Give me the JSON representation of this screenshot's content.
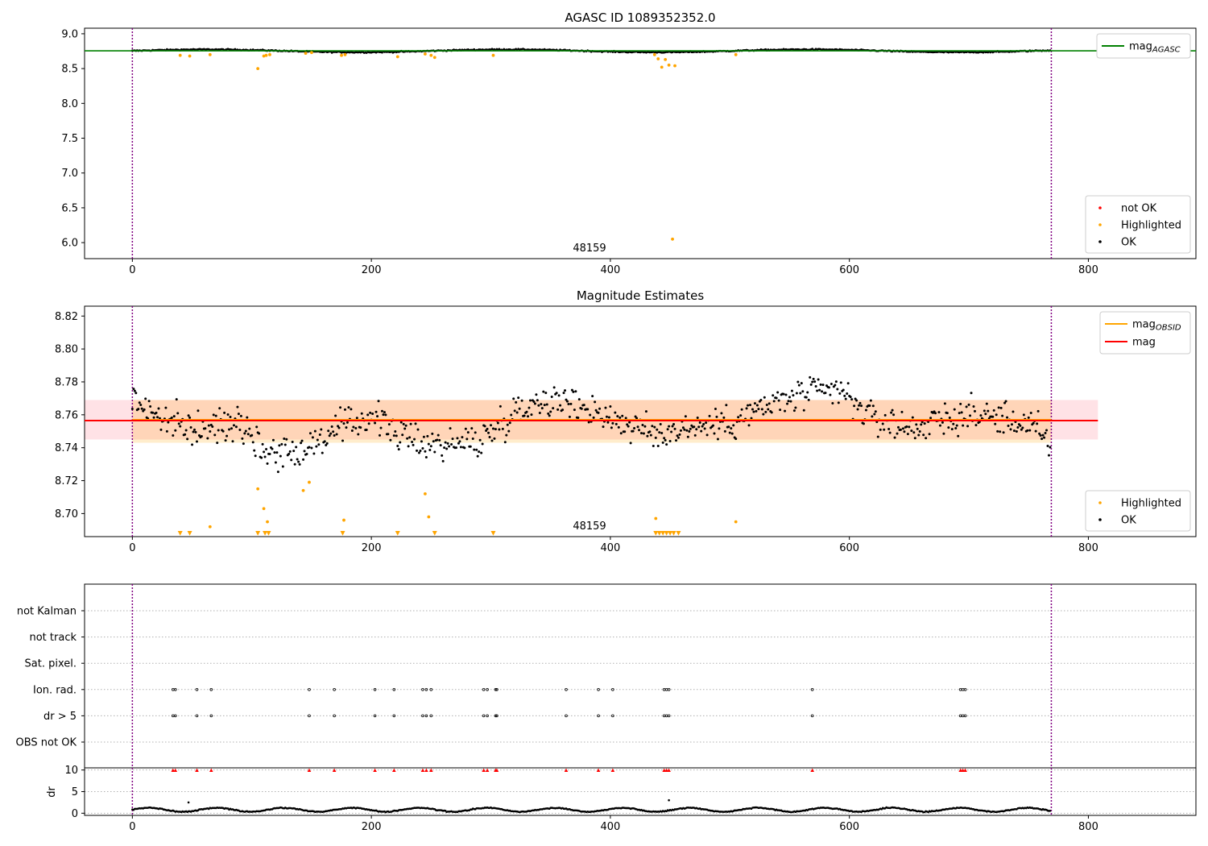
{
  "chart_data": [
    {
      "type": "scatter",
      "title": "AGASC ID 1089352352.0",
      "annotation": "48159",
      "xlim": [
        -40,
        890
      ],
      "ylim": [
        5.77,
        9.08
      ],
      "xticks": [
        0,
        200,
        400,
        600,
        800
      ],
      "xtick_labels": [
        "0",
        "200",
        "400",
        "600",
        "800"
      ],
      "yticks": [
        6.0,
        6.5,
        7.0,
        7.5,
        8.0,
        8.5,
        9.0
      ],
      "ytick_labels": [
        "6.0",
        "6.5",
        "7.0",
        "7.5",
        "8.0",
        "8.5",
        "9.0"
      ],
      "obs_boundaries": [
        0,
        769
      ],
      "hlines": [
        {
          "name": "mag_AGASC",
          "y": 8.755,
          "color": "#008000"
        }
      ],
      "legend_lines": [
        {
          "label": "mag",
          "sub": "AGASC",
          "color": "#008000"
        }
      ],
      "legend_line_placement": "upper right",
      "legend_points": [
        {
          "label": "not OK",
          "color": "#ff0000"
        },
        {
          "label": "Highlighted",
          "color": "#ffa500"
        },
        {
          "label": "OK",
          "color": "#000000"
        }
      ],
      "legend_points_placement": "lower right",
      "series": [
        {
          "name": "OK",
          "color": "#000000",
          "base": 8.755,
          "noise": 0.012,
          "count": 769
        },
        {
          "name": "Highlighted",
          "color": "#ffa500",
          "x": [
            40,
            48,
            65,
            105,
            110,
            112,
            115,
            145,
            150,
            175,
            178,
            222,
            245,
            250,
            253,
            302,
            437,
            440,
            443,
            446,
            449,
            452,
            454,
            505
          ],
          "y": [
            8.69,
            8.68,
            8.7,
            8.5,
            8.68,
            8.69,
            8.7,
            8.72,
            8.73,
            8.69,
            8.7,
            8.67,
            8.71,
            8.69,
            8.66,
            8.69,
            8.7,
            8.64,
            8.52,
            8.63,
            8.55,
            6.05,
            8.54,
            8.7
          ]
        }
      ]
    },
    {
      "type": "scatter",
      "title": "Magnitude Estimates",
      "annotation": "48159",
      "xlim": [
        -40,
        890
      ],
      "ylim": [
        8.686,
        8.826
      ],
      "xticks": [
        0,
        200,
        400,
        600,
        800
      ],
      "xtick_labels": [
        "0",
        "200",
        "400",
        "600",
        "800"
      ],
      "yticks": [
        8.7,
        8.72,
        8.74,
        8.76,
        8.78,
        8.8,
        8.82
      ],
      "ytick_labels": [
        "8.70",
        "8.72",
        "8.74",
        "8.76",
        "8.78",
        "8.80",
        "8.82"
      ],
      "obs_boundaries": [
        0,
        769
      ],
      "bands": [
        {
          "x0": -40,
          "x1": 808,
          "y0": 8.745,
          "y1": 8.769,
          "color": "#ffb6c1",
          "opacity": 0.4
        },
        {
          "x0": 0,
          "x1": 769,
          "y0": 8.743,
          "y1": 8.769,
          "color": "#ffa500",
          "opacity": 0.2
        }
      ],
      "hlines": [
        {
          "name": "mag_OBSID",
          "y": 8.757,
          "x0": 0,
          "x1": 769,
          "color": "#ffa500"
        },
        {
          "name": "mag",
          "y": 8.7565,
          "x0": -40,
          "x1": 808,
          "color": "#ff0000"
        }
      ],
      "legend_lines": [
        {
          "label": "mag",
          "sub": "OBSID",
          "color": "#ffa500"
        },
        {
          "label": "mag",
          "sub": "",
          "color": "#ff0000"
        }
      ],
      "legend_line_placement": "upper right",
      "legend_points": [
        {
          "label": "Highlighted",
          "color": "#ffa500"
        },
        {
          "label": "OK",
          "color": "#000000"
        }
      ],
      "legend_points_placement": "lower right",
      "series": [
        {
          "name": "OK",
          "color": "#000000",
          "count": 769,
          "trend_x": [
            0,
            10,
            30,
            60,
            90,
            110,
            140,
            165,
            200,
            230,
            260,
            290,
            320,
            345,
            380,
            420,
            440,
            460,
            500,
            530,
            560,
            590,
            620,
            650,
            700,
            730,
            755,
            769
          ],
          "trend_y": [
            8.77,
            8.765,
            8.755,
            8.75,
            8.758,
            8.738,
            8.738,
            8.748,
            8.76,
            8.745,
            8.742,
            8.744,
            8.762,
            8.77,
            8.765,
            8.752,
            8.748,
            8.752,
            8.755,
            8.765,
            8.772,
            8.775,
            8.758,
            8.752,
            8.76,
            8.758,
            8.752,
            8.74
          ]
        },
        {
          "name": "Highlighted",
          "color": "#ffa500",
          "x": [
            65,
            105,
            110,
            113,
            143,
            148,
            177,
            245,
            248,
            438,
            505
          ],
          "y": [
            8.692,
            8.715,
            8.703,
            8.695,
            8.714,
            8.719,
            8.696,
            8.712,
            8.698,
            8.697,
            8.695
          ]
        },
        {
          "name": "Highlighted (below range)",
          "color": "#ffa500",
          "marker": "triangle-down",
          "x": [
            40,
            48,
            105,
            111,
            114,
            176,
            222,
            253,
            302,
            438,
            441,
            444,
            447,
            450,
            453,
            457
          ]
        }
      ]
    },
    {
      "type": "scatter",
      "title": "",
      "xlim": [
        -40,
        890
      ],
      "categories": [
        "not Kalman",
        "not track",
        "Sat. pixel.",
        "Ion. rad.",
        "dr > 5",
        "OBS not OK"
      ],
      "obs_boundaries": [
        0,
        769
      ],
      "flag_x": [
        34,
        36,
        54,
        66,
        148,
        169,
        203,
        219,
        243,
        246,
        250,
        294,
        297,
        304,
        305,
        363,
        390,
        402,
        445,
        447,
        449,
        569,
        693,
        695,
        697
      ],
      "flag_categories": [
        "Ion. rad.",
        "dr > 5"
      ]
    },
    {
      "type": "scatter",
      "title": "",
      "ylabel": "dr",
      "xlim": [
        -40,
        890
      ],
      "ylim": [
        -0.5,
        10.5
      ],
      "xticks": [
        0,
        200,
        400,
        600,
        800
      ],
      "xtick_labels": [
        "0",
        "200",
        "400",
        "600",
        "800"
      ],
      "yticks": [
        0,
        5,
        10
      ],
      "ytick_labels": [
        "0",
        "5",
        "10"
      ],
      "obs_boundaries": [
        0,
        769
      ],
      "series": [
        {
          "name": "dr",
          "color": "#000000",
          "count": 769,
          "base": 0.8,
          "amplitude": 0.45,
          "outliers_x": [
            47,
            449
          ],
          "outliers_y": [
            2.5,
            3.0
          ]
        },
        {
          "name": "dr > 5",
          "color": "#ff0000",
          "marker": "triangle-up",
          "y": 10,
          "x": [
            34,
            36,
            54,
            66,
            148,
            169,
            203,
            219,
            243,
            246,
            250,
            294,
            297,
            304,
            305,
            363,
            390,
            402,
            445,
            447,
            449,
            569,
            693,
            695,
            697
          ]
        }
      ]
    }
  ]
}
